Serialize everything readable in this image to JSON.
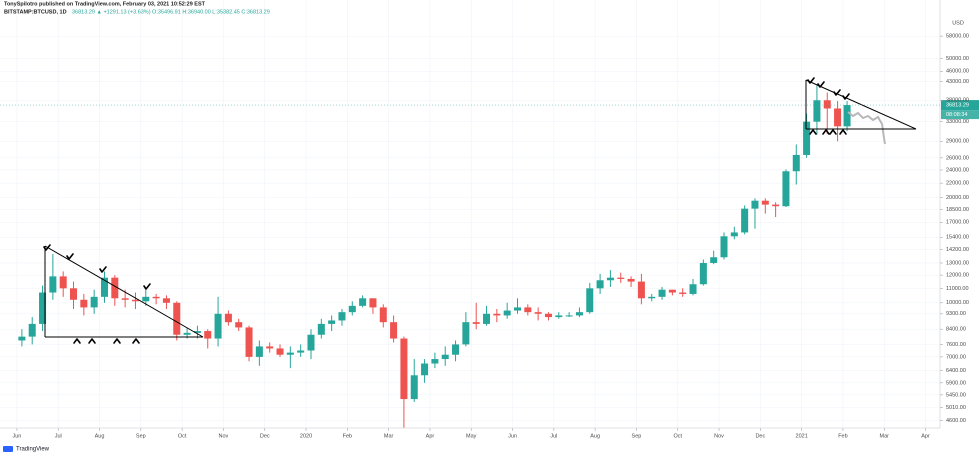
{
  "chart_data": {
    "type": "candlestick",
    "header_title": "TonySpilotro published on TradingView.com, February 03, 2021 10:52:29 EST",
    "symbol": "BITSTAMP:BTCUSD, 1D",
    "quote": "36813.29 ▲ +1291.13 (+3.63%)  O:35496.91  H:36940.00  L:35382.45  C:36813.29",
    "y_unit": "USD",
    "last_price": 36813.29,
    "countdown": "08:08:34",
    "footer": "TradingView",
    "up_color": "#26a69a",
    "down_color": "#ef5350",
    "log_scale": true,
    "grid": true,
    "xlim": [
      -0.41,
      22.35
    ],
    "ylim": [
      4380,
      73600
    ],
    "xticks": [
      {
        "value": 0,
        "label": "Jun"
      },
      {
        "value": 1,
        "label": "Jul"
      },
      {
        "value": 2,
        "label": "Aug"
      },
      {
        "value": 3,
        "label": "Sep"
      },
      {
        "value": 4,
        "label": "Oct"
      },
      {
        "value": 5,
        "label": "Nov"
      },
      {
        "value": 6,
        "label": "Dec"
      },
      {
        "value": 7,
        "label": "2020"
      },
      {
        "value": 8,
        "label": "Feb"
      },
      {
        "value": 9,
        "label": "Mar"
      },
      {
        "value": 10,
        "label": "Apr"
      },
      {
        "value": 11,
        "label": "May"
      },
      {
        "value": 12,
        "label": "Jun"
      },
      {
        "value": 13,
        "label": "Jul"
      },
      {
        "value": 14,
        "label": "Aug"
      },
      {
        "value": 15,
        "label": "Sep"
      },
      {
        "value": 16,
        "label": "Oct"
      },
      {
        "value": 17,
        "label": "Nov"
      },
      {
        "value": 18,
        "label": "Dec"
      },
      {
        "value": 19,
        "label": "2021"
      },
      {
        "value": 20,
        "label": "Feb"
      },
      {
        "value": 21,
        "label": "Mar"
      },
      {
        "value": 22,
        "label": "Apr"
      }
    ],
    "yticks": [
      {
        "value": 58000,
        "label": "58000.00"
      },
      {
        "value": 50000,
        "label": "50000.00"
      },
      {
        "value": 46000,
        "label": "46000.00"
      },
      {
        "value": 43000,
        "label": "43000.00"
      },
      {
        "value": 38000,
        "label": "38000.00"
      },
      {
        "value": 33000,
        "label": "33000.00"
      },
      {
        "value": 29000,
        "label": "29000.00"
      },
      {
        "value": 26000,
        "label": "26000.00"
      },
      {
        "value": 24000,
        "label": "24000.00"
      },
      {
        "value": 22000,
        "label": "22000.00"
      },
      {
        "value": 20000,
        "label": "20000.00"
      },
      {
        "value": 18500,
        "label": "18500.00"
      },
      {
        "value": 17000,
        "label": "17000.00"
      },
      {
        "value": 15400,
        "label": "15400.00"
      },
      {
        "value": 14200,
        "label": "14200.00"
      },
      {
        "value": 13000,
        "label": "13000.00"
      },
      {
        "value": 12000,
        "label": "12000.00"
      },
      {
        "value": 11000,
        "label": "11000.00"
      },
      {
        "value": 10000,
        "label": "10000.00"
      },
      {
        "value": 9300,
        "label": "9300.00"
      },
      {
        "value": 8400,
        "label": "8400.00"
      },
      {
        "value": 7600,
        "label": "7600.00"
      },
      {
        "value": 7000,
        "label": "7000.00"
      },
      {
        "value": 6400,
        "label": "6400.00"
      },
      {
        "value": 5900,
        "label": "5900.00"
      },
      {
        "value": 5450,
        "label": "5450.00"
      },
      {
        "value": 5010,
        "label": "5010.00"
      },
      {
        "value": 4600,
        "label": "4600.00"
      }
    ],
    "x": [
      0.12,
      0.37,
      0.62,
      0.87,
      1.12,
      1.37,
      1.62,
      1.87,
      2.12,
      2.37,
      2.62,
      2.87,
      3.12,
      3.37,
      3.62,
      3.87,
      4.12,
      4.37,
      4.62,
      4.87,
      5.12,
      5.37,
      5.62,
      5.87,
      6.12,
      6.37,
      6.62,
      6.87,
      7.12,
      7.37,
      7.62,
      7.87,
      8.12,
      8.37,
      8.62,
      8.87,
      9.12,
      9.37,
      9.62,
      9.87,
      10.12,
      10.37,
      10.62,
      10.87,
      11.12,
      11.37,
      11.62,
      11.87,
      12.12,
      12.37,
      12.62,
      12.87,
      13.12,
      13.37,
      13.62,
      13.87,
      14.12,
      14.37,
      14.62,
      14.87,
      15.12,
      15.37,
      15.62,
      15.87,
      16.12,
      16.37,
      16.62,
      16.87,
      17.12,
      17.37,
      17.62,
      17.87,
      18.12,
      18.37,
      18.62,
      18.87,
      19.12,
      19.37,
      19.62,
      19.87,
      20.1
    ],
    "open": [
      7800,
      8000,
      8700,
      10700,
      11900,
      11000,
      10200,
      9700,
      10400,
      11800,
      10300,
      10200,
      10100,
      10400,
      10300,
      10000,
      8100,
      8200,
      8300,
      7900,
      9300,
      8800,
      8500,
      7000,
      7500,
      7400,
      7100,
      7200,
      7300,
      8100,
      8700,
      8900,
      9400,
      9800,
      10300,
      9700,
      8800,
      7900,
      5300,
      6200,
      6700,
      6900,
      7100,
      7600,
      8800,
      8700,
      9300,
      9200,
      9500,
      9700,
      9400,
      9300,
      9100,
      9200,
      9200,
      9400,
      11000,
      11600,
      11800,
      11700,
      11500,
      10300,
      10400,
      10900,
      10700,
      10600,
      11300,
      13000,
      13500,
      15500,
      15900,
      18600,
      19600,
      19100,
      18900,
      23800,
      26500,
      33000,
      38000,
      36000,
      32000
    ],
    "high": [
      8400,
      9100,
      11200,
      13800,
      12300,
      11500,
      10600,
      10900,
      12300,
      12000,
      10900,
      10700,
      10900,
      10600,
      10500,
      10100,
      8500,
      8600,
      8400,
      10400,
      9500,
      9000,
      8600,
      7800,
      7700,
      7600,
      7500,
      7600,
      8400,
      9000,
      9200,
      9600,
      10100,
      10500,
      10300,
      9900,
      9200,
      8000,
      6900,
      6900,
      7200,
      7500,
      7800,
      9400,
      10000,
      9800,
      9600,
      10000,
      10300,
      9900,
      9700,
      9400,
      9400,
      9400,
      9700,
      11400,
      12100,
      12400,
      12200,
      11900,
      12100,
      10600,
      11100,
      10900,
      11000,
      11700,
      13300,
      14100,
      15900,
      16500,
      19000,
      19900,
      19900,
      19400,
      24100,
      28400,
      34800,
      41900,
      40000,
      37800,
      37800
    ],
    "low": [
      7500,
      7600,
      8300,
      10200,
      10400,
      9600,
      9200,
      9300,
      10000,
      9800,
      9700,
      9600,
      9800,
      9900,
      9600,
      7800,
      7900,
      7900,
      7400,
      7500,
      8600,
      8300,
      6800,
      6600,
      7200,
      7000,
      6500,
      7000,
      6900,
      7900,
      8300,
      8600,
      9200,
      9700,
      9300,
      8500,
      7700,
      3850,
      5200,
      5900,
      6500,
      6600,
      6800,
      7500,
      8400,
      8600,
      8800,
      9000,
      9300,
      9200,
      8900,
      8900,
      9000,
      9100,
      9100,
      9300,
      10600,
      11100,
      11400,
      11100,
      9900,
      10100,
      10200,
      10500,
      10400,
      10500,
      11200,
      12900,
      13300,
      15200,
      15700,
      16300,
      18000,
      17600,
      18800,
      21800,
      26000,
      30300,
      30400,
      29000,
      31000
    ],
    "close": [
      8000,
      8700,
      10700,
      11900,
      11000,
      10200,
      9700,
      10400,
      11800,
      10300,
      10200,
      10100,
      10400,
      10300,
      10000,
      8100,
      8200,
      8300,
      7900,
      9300,
      8800,
      8500,
      7000,
      7500,
      7400,
      7100,
      7200,
      7300,
      8100,
      8700,
      8900,
      9400,
      9800,
      10300,
      9700,
      8800,
      7900,
      5300,
      6200,
      6700,
      6900,
      7100,
      7600,
      8800,
      8700,
      9300,
      9200,
      9500,
      9700,
      9400,
      9300,
      9100,
      9200,
      9200,
      9400,
      11000,
      11600,
      11800,
      11700,
      11500,
      10300,
      10400,
      10900,
      10700,
      10600,
      11300,
      13000,
      13500,
      15500,
      15900,
      18600,
      19600,
      19100,
      18900,
      23800,
      26500,
      33000,
      38000,
      36000,
      32000,
      36813.29
    ]
  }
}
